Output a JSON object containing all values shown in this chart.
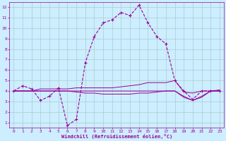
{
  "xlabel": "Windchill (Refroidissement éolien,°C)",
  "background_color": "#cceeff",
  "grid_color": "#aacccc",
  "line_color": "#990099",
  "xlim": [
    -0.5,
    23.5
  ],
  "ylim": [
    0.5,
    12.5
  ],
  "xticks": [
    0,
    1,
    2,
    3,
    4,
    5,
    6,
    7,
    8,
    9,
    10,
    11,
    12,
    13,
    14,
    15,
    16,
    17,
    18,
    19,
    20,
    21,
    22,
    23
  ],
  "yticks": [
    1,
    2,
    3,
    4,
    5,
    6,
    7,
    8,
    9,
    10,
    11,
    12
  ],
  "series1_x": [
    0,
    1,
    2,
    3,
    4,
    5,
    6,
    7,
    8,
    9,
    10,
    11,
    12,
    13,
    14,
    15,
    16,
    17,
    18,
    19,
    20,
    21,
    22,
    23
  ],
  "series1_y": [
    4.0,
    4.5,
    4.2,
    3.1,
    3.5,
    4.3,
    0.7,
    1.3,
    6.7,
    9.2,
    10.5,
    10.8,
    11.5,
    11.2,
    12.2,
    10.5,
    9.2,
    8.5,
    5.0,
    4.0,
    3.2,
    4.0,
    4.0,
    4.0
  ],
  "series2_x": [
    0,
    1,
    2,
    3,
    4,
    5,
    6,
    7,
    8,
    9,
    10,
    11,
    12,
    13,
    14,
    15,
    16,
    17,
    18,
    19,
    20,
    21,
    22,
    23
  ],
  "series2_y": [
    4.0,
    4.0,
    4.0,
    4.2,
    4.2,
    4.2,
    4.2,
    4.3,
    4.3,
    4.3,
    4.3,
    4.3,
    4.4,
    4.5,
    4.6,
    4.8,
    4.8,
    4.8,
    5.0,
    3.9,
    3.8,
    4.0,
    4.0,
    4.1
  ],
  "series3_x": [
    0,
    1,
    2,
    3,
    4,
    5,
    6,
    7,
    8,
    9,
    10,
    11,
    12,
    13,
    14,
    15,
    16,
    17,
    18,
    19,
    20,
    21,
    22,
    23
  ],
  "series3_y": [
    4.0,
    4.0,
    4.0,
    4.0,
    4.0,
    4.0,
    4.0,
    4.0,
    4.0,
    4.0,
    4.0,
    4.0,
    4.0,
    4.0,
    4.0,
    4.0,
    4.0,
    4.0,
    4.0,
    3.5,
    3.1,
    3.5,
    4.0,
    4.0
  ],
  "series4_x": [
    0,
    1,
    2,
    3,
    4,
    5,
    6,
    7,
    8,
    9,
    10,
    11,
    12,
    13,
    14,
    15,
    16,
    17,
    18,
    19,
    20,
    21,
    22,
    23
  ],
  "series4_y": [
    4.0,
    4.0,
    4.0,
    4.0,
    4.0,
    4.0,
    4.0,
    3.9,
    3.8,
    3.8,
    3.7,
    3.7,
    3.7,
    3.7,
    3.8,
    3.8,
    3.9,
    4.0,
    4.0,
    3.4,
    3.1,
    3.4,
    4.0,
    4.0
  ]
}
